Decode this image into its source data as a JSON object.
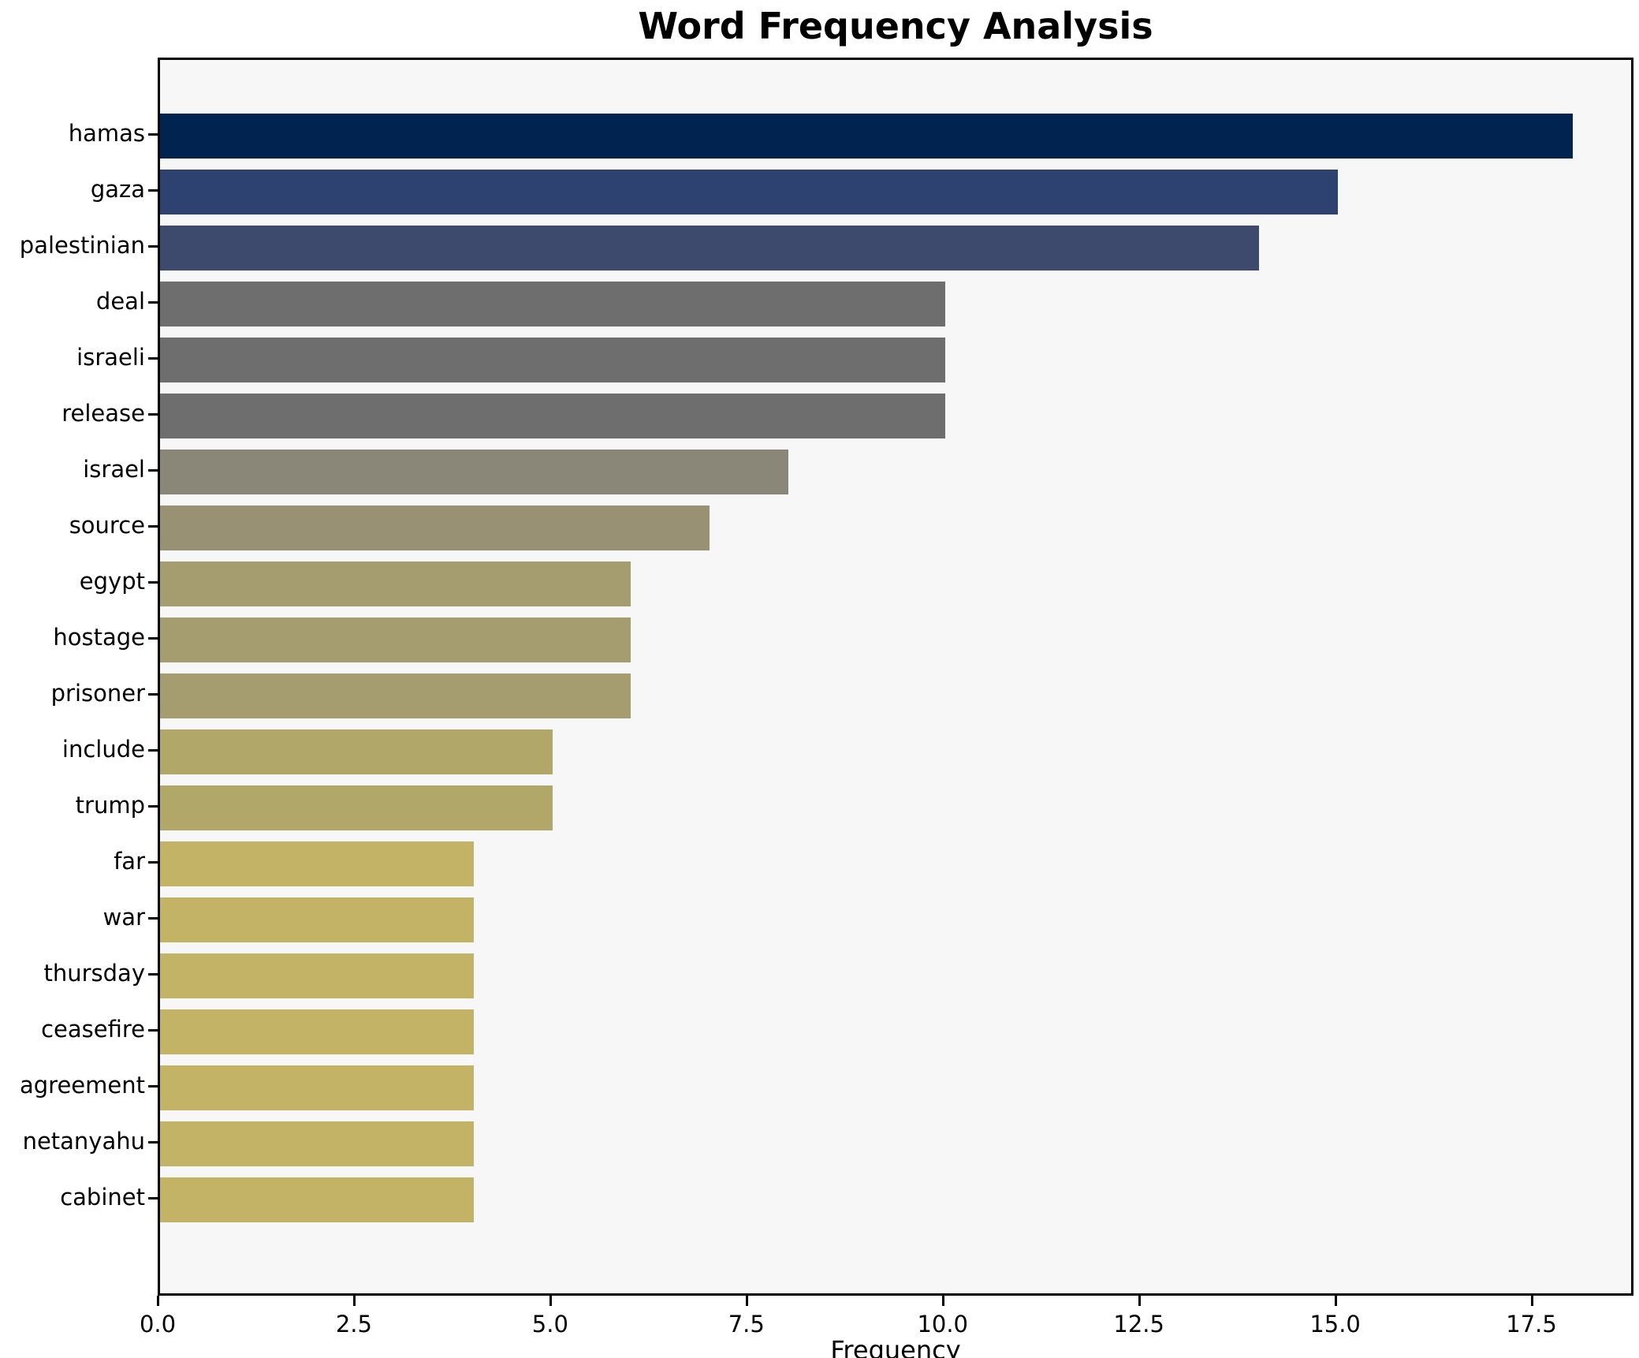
{
  "chart_data": {
    "type": "bar",
    "orientation": "horizontal",
    "title": "Word Frequency Analysis",
    "xlabel": "Frequency",
    "ylabel": "",
    "categories": [
      "hamas",
      "gaza",
      "palestinian",
      "deal",
      "israeli",
      "release",
      "israel",
      "source",
      "egypt",
      "hostage",
      "prisoner",
      "include",
      "trump",
      "far",
      "war",
      "thursday",
      "ceasefire",
      "agreement",
      "netanyahu",
      "cabinet"
    ],
    "values": [
      18,
      15,
      14,
      10,
      10,
      10,
      8,
      7,
      6,
      6,
      6,
      5,
      5,
      4,
      4,
      4,
      4,
      4,
      4,
      4
    ],
    "bar_colors": [
      "#00234f",
      "#2d4270",
      "#3d4a6d",
      "#6e6e6e",
      "#6e6e6e",
      "#6e6e6e",
      "#8a8779",
      "#989173",
      "#a59c6f",
      "#a59c6f",
      "#a59c6f",
      "#b0a768",
      "#b0a768",
      "#c2b366",
      "#c2b366",
      "#c2b366",
      "#c2b366",
      "#c2b366",
      "#c2b366",
      "#c2b366"
    ],
    "xlim": [
      0,
      18.8
    ],
    "xticks": [
      0.0,
      2.5,
      5.0,
      7.5,
      10.0,
      12.5,
      15.0,
      17.5
    ],
    "xtick_labels": [
      "0.0",
      "2.5",
      "5.0",
      "7.5",
      "10.0",
      "12.5",
      "15.0",
      "17.5"
    ],
    "grid": false,
    "legend": false,
    "colormap": "cividis",
    "plot_background": "#f7f7f7",
    "figure_background": "#ffffff"
  }
}
